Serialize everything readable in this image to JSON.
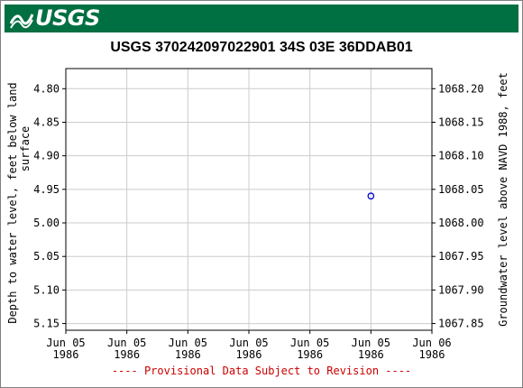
{
  "header": {
    "logo_text": "USGS",
    "logo_icon": "usgs-wave-icon",
    "brand_color": "#006f41"
  },
  "chart_data": {
    "type": "scatter",
    "title": "USGS 370242097022901 34S 03E 36DDAB01",
    "ylabel_left": "Depth to water level, feet below land surface",
    "ylabel_left_lines": [
      "Depth to water level, feet below land",
      "surface"
    ],
    "ylabel_right": "Groundwater level above NAVD 1988, feet",
    "ylim_left": [
      4.77,
      5.16
    ],
    "ylim_right": [
      1068.23,
      1067.84
    ],
    "left_inverted": true,
    "yticks_left": [
      "4.80",
      "4.85",
      "4.90",
      "4.95",
      "5.00",
      "5.05",
      "5.10",
      "5.15"
    ],
    "yticks_left_values": [
      4.8,
      4.85,
      4.9,
      4.95,
      5.0,
      5.05,
      5.1,
      5.15
    ],
    "yticks_right": [
      "1068.20",
      "1068.15",
      "1068.10",
      "1068.05",
      "1068.00",
      "1067.95",
      "1067.90",
      "1067.85"
    ],
    "xticks": [
      {
        "line1": "Jun 05",
        "line2": "1986"
      },
      {
        "line1": "Jun 05",
        "line2": "1986"
      },
      {
        "line1": "Jun 05",
        "line2": "1986"
      },
      {
        "line1": "Jun 05",
        "line2": "1986"
      },
      {
        "line1": "Jun 05",
        "line2": "1986"
      },
      {
        "line1": "Jun 05",
        "line2": "1986"
      },
      {
        "line1": "Jun 06",
        "line2": "1986"
      }
    ],
    "xlim_hours": [
      0,
      24
    ],
    "series": [
      {
        "marker": "open-circle",
        "color": "#0000cc",
        "points": [
          {
            "x_hours": 20,
            "y": 4.96
          }
        ]
      }
    ],
    "grid": true,
    "grid_color": "#cccccc",
    "footer_note": "---- Provisional Data Subject to Revision ----",
    "footer_color": "#cc0000"
  }
}
